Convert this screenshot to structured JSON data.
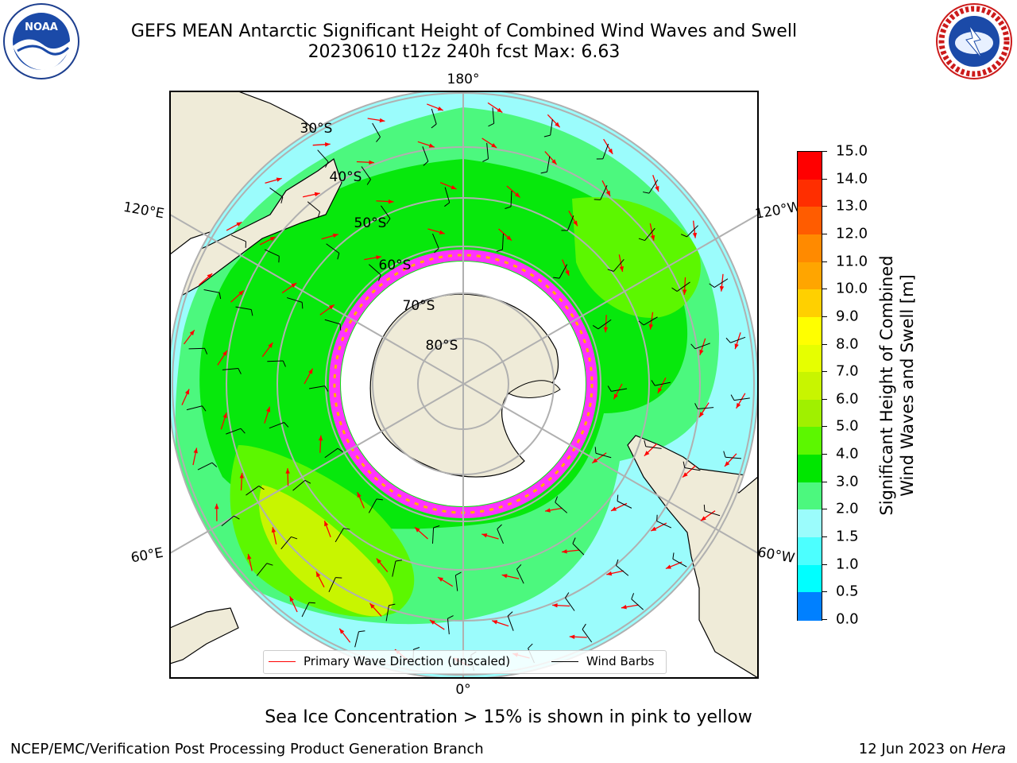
{
  "title": {
    "line1": "GEFS MEAN Antarctic Significant Height of Combined Wind Waves and Swell",
    "line2": "20230610 t12z 240h fcst   Max: 6.63"
  },
  "logos": {
    "left": {
      "name": "noaa-logo",
      "text": "NOAA"
    },
    "right": {
      "name": "nws-logo",
      "text": "NATIONAL WEATHER SERVICE"
    }
  },
  "map": {
    "projection": "south-polar-stereographic",
    "longitude_labels": {
      "top": "180°",
      "bottom": "0°",
      "upper_left": "120°E",
      "upper_right": "120°W",
      "lower_left": "60°E",
      "lower_right": "60°W"
    },
    "latitude_labels": [
      "30°S",
      "40°S",
      "50°S",
      "60°S",
      "70°S",
      "80°S"
    ],
    "legend": {
      "wave_label": "Primary Wave Direction (unscaled)",
      "wind_label": "Wind Barbs",
      "wave_color": "#ff0000",
      "wind_color": "#000000"
    },
    "colors": {
      "land": "#efebd8",
      "ocean_low": "#9bfcfc",
      "ocean_mid": "#4cf87e",
      "ocean_high": "#00e600",
      "ocean_higher": "#5cf700",
      "ocean_peak": "#c8f500",
      "ice_pink": "#ff33ff",
      "ice_yellow": "#ffb000",
      "grid": "#b0b0b0"
    }
  },
  "colorbar": {
    "label_line1": "Significant Height of Combined",
    "label_line2": "Wind Waves and Swell [m]",
    "ticks": [
      "15.0",
      "14.0",
      "13.0",
      "12.0",
      "11.0",
      "10.0",
      "9.0",
      "8.0",
      "7.0",
      "6.0",
      "5.0",
      "4.0",
      "3.0",
      "2.0",
      "1.5",
      "1.0",
      "0.5",
      "0.0"
    ],
    "colors": [
      "#ff0000",
      "#ff2e00",
      "#ff5c00",
      "#ff8a00",
      "#ffa500",
      "#ffd000",
      "#ffff00",
      "#e6ff00",
      "#c8f500",
      "#a0f000",
      "#5cf700",
      "#00e600",
      "#4cf87e",
      "#9bfcfc",
      "#4cffff",
      "#00ffff",
      "#0080ff",
      "#0000ff"
    ]
  },
  "notes": {
    "ice": "Sea Ice Concentration > 15% is shown in pink to yellow",
    "footer_left": "NCEP/EMC/Verification Post Processing Product Generation Branch",
    "footer_date": "12 Jun 2023 on ",
    "footer_host": "Hera"
  }
}
